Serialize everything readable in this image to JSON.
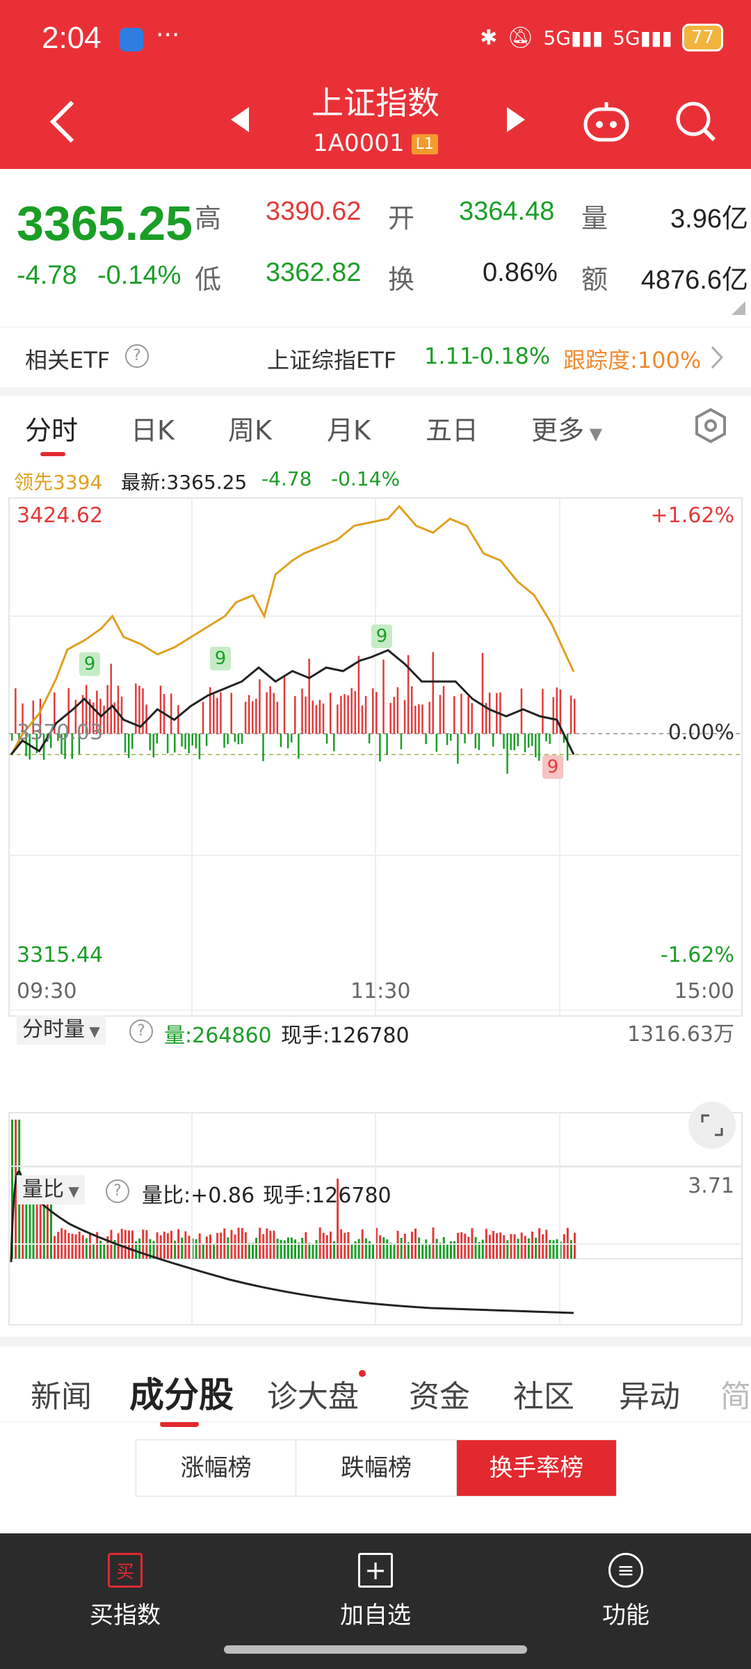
{
  "status": {
    "time": "2:04",
    "battery": "77"
  },
  "header": {
    "title": "上证指数",
    "code": "1A0001",
    "level": "L1"
  },
  "quote": {
    "price": "3365.25",
    "change": "-4.78",
    "change_pct": "-0.14%",
    "high_label": "高",
    "high": "3390.62",
    "open_label": "开",
    "open": "3364.48",
    "vol_label": "量",
    "vol": "3.96亿",
    "low_label": "低",
    "low": "3362.82",
    "turn_label": "换",
    "turn": "0.86%",
    "amt_label": "额",
    "amt": "4876.6亿"
  },
  "etf": {
    "label": "相关ETF",
    "name": "上证综指ETF",
    "price": "1.11",
    "pct": "-0.18%",
    "track": "跟踪度:100%"
  },
  "tabs": [
    "分时",
    "日K",
    "周K",
    "月K",
    "五日",
    "更多"
  ],
  "chart": {
    "legend_leader": "领先3394",
    "legend_latest": "最新:3365.25",
    "legend_change": "-4.78",
    "legend_pct": "-0.14%",
    "y_top": "3424.62",
    "y_bottom": "3315.44",
    "y_mid": "3370.03",
    "pct_top": "+1.62%",
    "pct_mid": "0.00%",
    "pct_bottom": "-1.62%",
    "time_start": "09:30",
    "time_mid": "11:30",
    "time_end": "15:00",
    "signal_9": "9"
  },
  "volume": {
    "label": "分时量",
    "vol": "量:264860",
    "hand": "现手:126780",
    "max": "1316.63万"
  },
  "ratio": {
    "label": "量比",
    "ratio": "量比:+0.86",
    "hand": "现手:126780",
    "max": "3.71"
  },
  "bottom_tabs": [
    "新闻",
    "成分股",
    "诊大盘",
    "资金",
    "社区",
    "异动",
    "简"
  ],
  "segments": [
    "涨幅榜",
    "跌幅榜",
    "换手率榜"
  ],
  "nav": {
    "buy": "买指数",
    "buy_icon": "买",
    "add": "加自选",
    "func": "功能"
  },
  "colors": {
    "brand": "#ea3037",
    "up": "#e23a3a",
    "down": "#1a9e26",
    "leader": "#e0a020"
  }
}
